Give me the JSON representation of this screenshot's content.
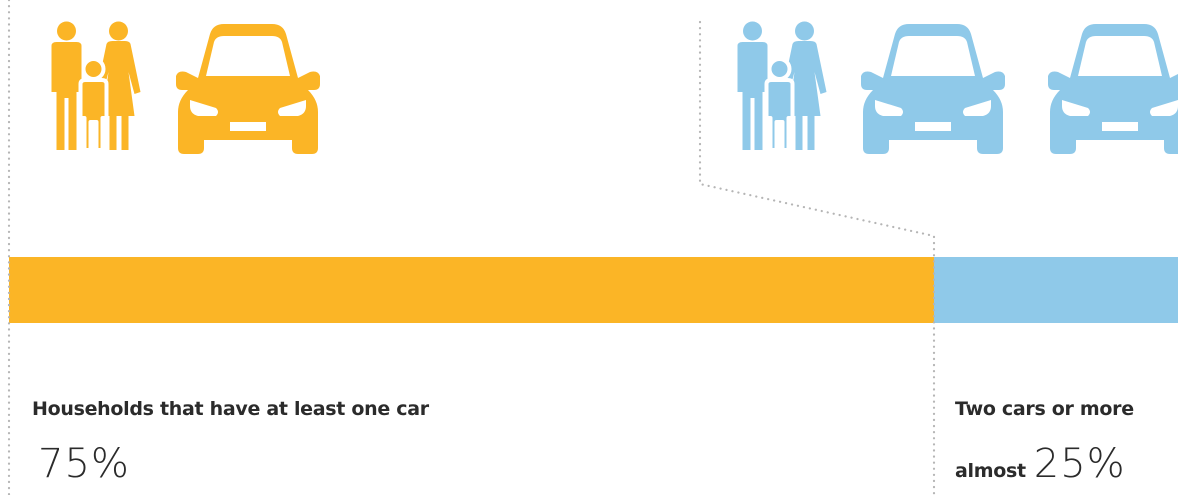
{
  "chart_data": {
    "type": "bar",
    "orientation": "horizontal-stacked",
    "categories": [
      "Households that have at least one car",
      "Two cars or more"
    ],
    "values": [
      75,
      25
    ],
    "value_labels": [
      "75%",
      "25%"
    ],
    "value_prefix": [
      "",
      "almost"
    ],
    "colors": [
      "#fbb526",
      "#8fc9e9"
    ],
    "unit": "%"
  },
  "icons": {
    "left": [
      "family-icon",
      "car-icon"
    ],
    "right": [
      "family-icon",
      "car-icon",
      "car-icon"
    ]
  }
}
